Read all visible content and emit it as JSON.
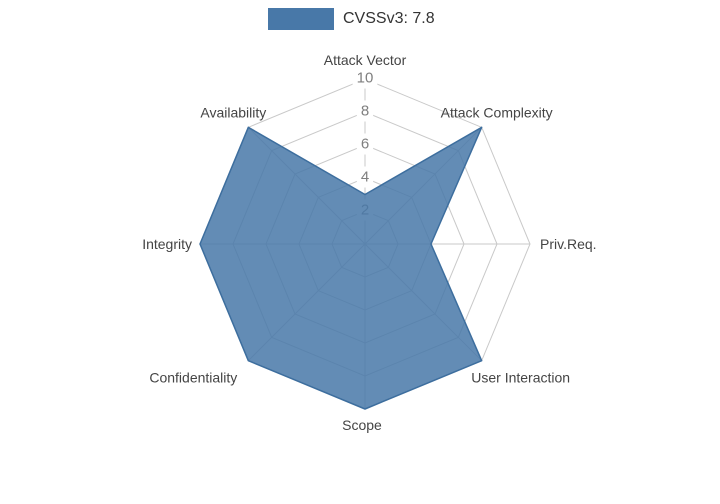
{
  "chart_data": {
    "type": "radar",
    "title": "",
    "legend": {
      "label": "CVSSv3: 7.8",
      "color": "#4878A8",
      "position": "top"
    },
    "axes": [
      "Attack Vector",
      "Attack Complexity",
      "Priv.Req.",
      "User Interaction",
      "Scope",
      "Confidentiality",
      "Integrity",
      "Availability"
    ],
    "ticks": [
      2,
      4,
      6,
      8,
      10
    ],
    "range": [
      0,
      10
    ],
    "grid": true,
    "series": [
      {
        "name": "CVSSv3: 7.8",
        "values": [
          3,
          10,
          4,
          10,
          10,
          10,
          10,
          10
        ],
        "fill": "#4878A8",
        "fill_opacity": 0.85,
        "stroke": "#3D6E9E"
      }
    ]
  },
  "colors": {
    "axis_label": "#444444",
    "tick_label": "#7F7F7F",
    "tick_box": "#FFFFFF",
    "grid": "#C9C9C9",
    "background": "#FFFFFF",
    "legend_text": "#333333"
  }
}
